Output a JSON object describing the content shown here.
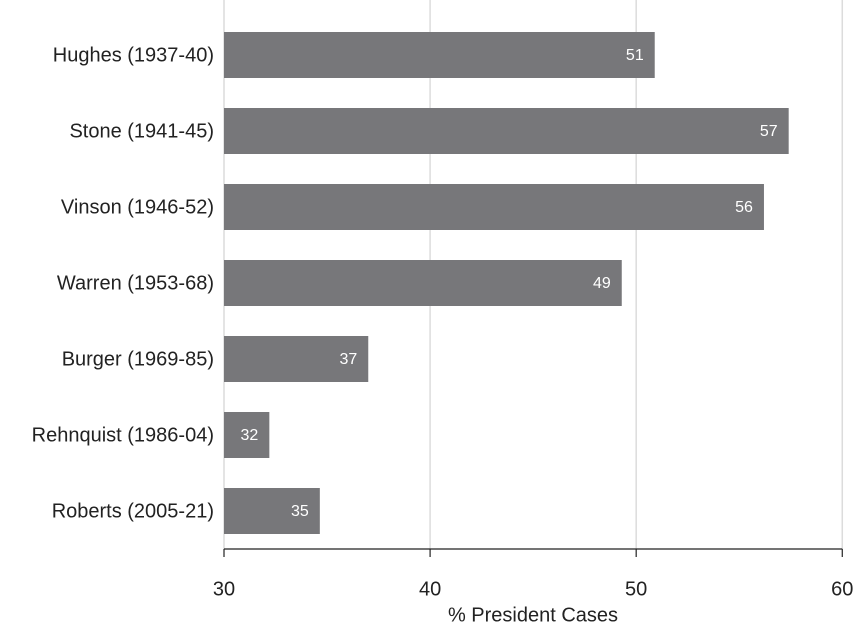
{
  "chart_data": {
    "type": "bar",
    "orientation": "horizontal",
    "x_label": "% President Cases",
    "categories": [
      "Hughes (1937-40)",
      "Stone (1941-45)",
      "Vinson (1946-52)",
      "Warren (1953-68)",
      "Burger (1969-85)",
      "Rehnquist (1986-04)",
      "Roberts (2005-21)"
    ],
    "values": [
      50.9,
      57.4,
      56.2,
      49.3,
      37.0,
      32.2,
      34.65
    ],
    "value_labels": [
      "51",
      "57",
      "56",
      "49",
      "37",
      "32",
      "35"
    ],
    "color": "#77777a",
    "xlim": [
      30,
      61.2
    ],
    "xticks": [
      30,
      40,
      50,
      60
    ],
    "grid": true
  }
}
